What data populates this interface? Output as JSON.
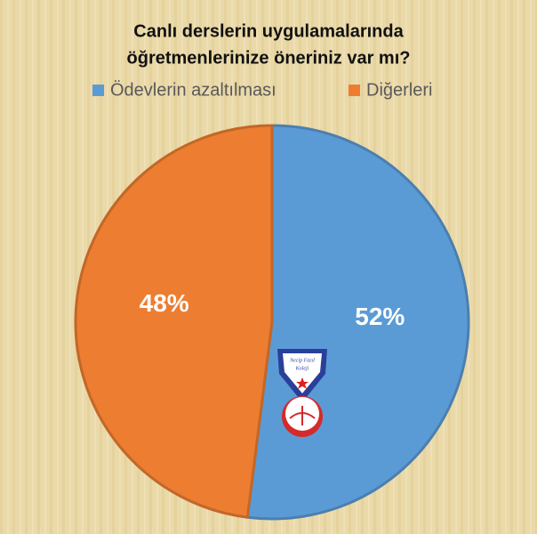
{
  "chart_data": {
    "type": "pie",
    "title": [
      "Canlı derslerin uygulamalarında",
      "öğretmenlerinize öneriniz var mı?"
    ],
    "categories": [
      "Ödevlerin azaltılması",
      "Diğerleri"
    ],
    "values": [
      52,
      48
    ],
    "value_labels": [
      "52%",
      "48%"
    ],
    "colors": [
      "#5b9bd5",
      "#ed7d31"
    ],
    "legend": "top"
  },
  "logo": {
    "lines": [
      "Necip Fazıl",
      "Koleji"
    ]
  }
}
